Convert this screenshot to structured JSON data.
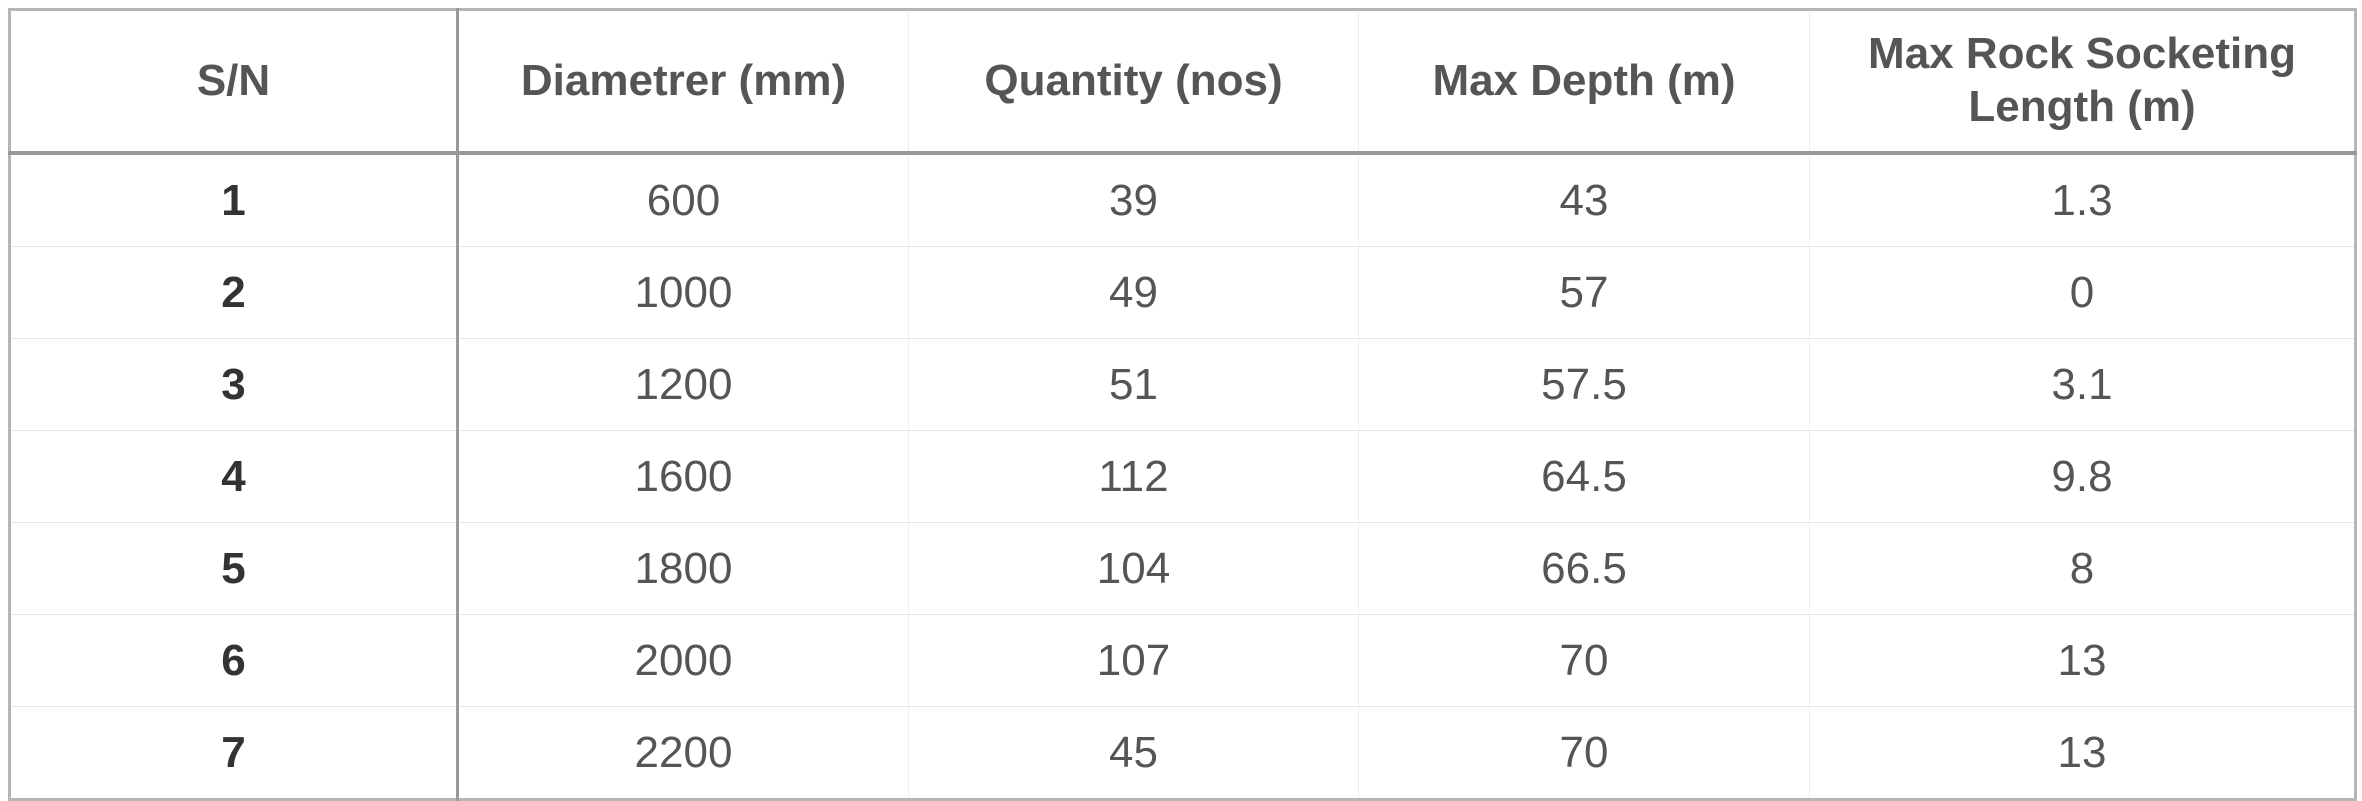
{
  "table": {
    "header": [
      "S/N",
      "Diametrer (mm)",
      "Quantity (nos)",
      "Max Depth (m)",
      "Max Rock Socketing Length (m)"
    ],
    "rows": [
      [
        1,
        600,
        39,
        43,
        1.3
      ],
      [
        2,
        1000,
        49,
        57,
        0
      ],
      [
        3,
        1200,
        51,
        57.5,
        3.1
      ],
      [
        4,
        1600,
        112,
        64.5,
        9.8
      ],
      [
        5,
        1800,
        104,
        66.5,
        8
      ],
      [
        6,
        2000,
        107,
        70,
        13
      ],
      [
        7,
        2200,
        45,
        70,
        13
      ]
    ]
  }
}
